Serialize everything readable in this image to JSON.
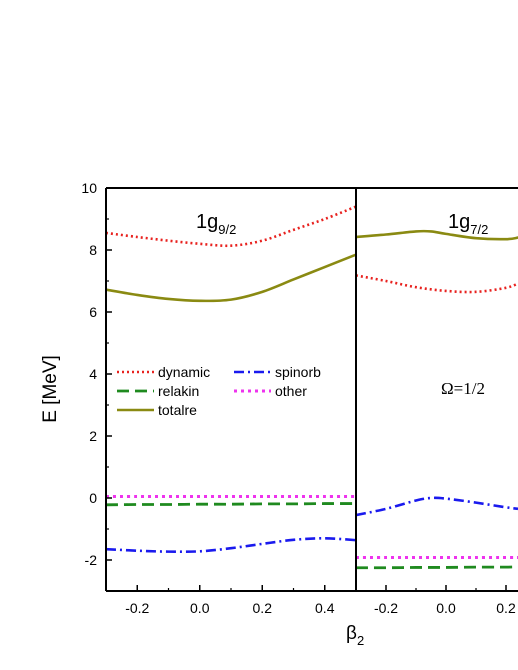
{
  "chart_data": {
    "type": "line",
    "ylabel": "E [MeV]",
    "xlabel_base": "β",
    "xlabel_sub": "2",
    "ylim": [
      -3,
      10
    ],
    "yticks": [
      -2,
      0,
      2,
      4,
      6,
      8,
      10
    ],
    "colors": {
      "dynamic": "#e8221f",
      "relakin": "#1f8a1f",
      "spinorb": "#1a1aee",
      "other": "#ee33ee",
      "totalre": "#8a8a12"
    },
    "legend": {
      "placement": "center-left of first panel",
      "entries": [
        {
          "key": "dynamic",
          "label": "dynamic"
        },
        {
          "key": "spinorb",
          "label": "spinorb"
        },
        {
          "key": "relakin",
          "label": "relakin"
        },
        {
          "key": "other",
          "label": "other"
        },
        {
          "key": "totalre",
          "label": "totalre"
        }
      ]
    },
    "annotation": "Ω=1/2",
    "panels": [
      {
        "title_main": "1g",
        "title_sub": "9/2",
        "xlim": [
          -0.3,
          0.5
        ],
        "xticks": [
          -0.2,
          0.0,
          0.2,
          0.4
        ],
        "xtick_labels": [
          "-0.2",
          "0.0",
          "0.2",
          "0.4"
        ],
        "series": [
          {
            "key": "dynamic",
            "x": [
              -0.3,
              -0.2,
              -0.1,
              0.0,
              0.1,
              0.2,
              0.3,
              0.4,
              0.5
            ],
            "y": [
              8.55,
              8.42,
              8.3,
              8.2,
              8.14,
              8.3,
              8.65,
              9.0,
              9.4
            ]
          },
          {
            "key": "totalre",
            "x": [
              -0.3,
              -0.2,
              -0.1,
              0.0,
              0.1,
              0.2,
              0.3,
              0.4,
              0.5
            ],
            "y": [
              6.72,
              6.55,
              6.42,
              6.36,
              6.4,
              6.65,
              7.05,
              7.45,
              7.85
            ]
          },
          {
            "key": "other",
            "x": [
              -0.3,
              -0.2,
              -0.1,
              0.0,
              0.1,
              0.2,
              0.3,
              0.4,
              0.5
            ],
            "y": [
              0.05,
              0.05,
              0.05,
              0.05,
              0.05,
              0.05,
              0.05,
              0.05,
              0.05
            ]
          },
          {
            "key": "relakin",
            "x": [
              -0.3,
              -0.2,
              -0.1,
              0.0,
              0.1,
              0.2,
              0.3,
              0.4,
              0.5
            ],
            "y": [
              -0.22,
              -0.21,
              -0.21,
              -0.2,
              -0.2,
              -0.19,
              -0.19,
              -0.18,
              -0.18
            ]
          },
          {
            "key": "spinorb",
            "x": [
              -0.3,
              -0.2,
              -0.1,
              0.0,
              0.1,
              0.2,
              0.3,
              0.4,
              0.5
            ],
            "y": [
              -1.65,
              -1.7,
              -1.73,
              -1.72,
              -1.62,
              -1.48,
              -1.35,
              -1.3,
              -1.36
            ]
          }
        ]
      },
      {
        "title_main": "1g",
        "title_sub": "7/2",
        "xlim": [
          -0.3,
          0.24
        ],
        "xticks": [
          -0.2,
          0.0,
          0.2
        ],
        "xtick_labels": [
          "-0.2",
          "0.0",
          "0.2"
        ],
        "series": [
          {
            "key": "totalre",
            "x": [
              -0.3,
              -0.2,
              -0.1,
              -0.05,
              0.0,
              0.1,
              0.2,
              0.24
            ],
            "y": [
              8.42,
              8.5,
              8.6,
              8.6,
              8.52,
              8.38,
              8.35,
              8.4
            ]
          },
          {
            "key": "dynamic",
            "x": [
              -0.3,
              -0.2,
              -0.1,
              0.0,
              0.1,
              0.2,
              0.24
            ],
            "y": [
              7.18,
              7.0,
              6.8,
              6.68,
              6.65,
              6.78,
              6.92
            ]
          },
          {
            "key": "spinorb",
            "x": [
              -0.3,
              -0.2,
              -0.1,
              -0.05,
              0.0,
              0.1,
              0.2,
              0.24
            ],
            "y": [
              -0.55,
              -0.35,
              -0.08,
              0.0,
              -0.02,
              -0.15,
              -0.3,
              -0.35
            ]
          },
          {
            "key": "other",
            "x": [
              -0.3,
              -0.2,
              -0.1,
              0.0,
              0.1,
              0.2,
              0.24
            ],
            "y": [
              -1.92,
              -1.92,
              -1.92,
              -1.92,
              -1.92,
              -1.92,
              -1.92
            ]
          },
          {
            "key": "relakin",
            "x": [
              -0.3,
              -0.2,
              -0.1,
              0.0,
              0.1,
              0.2,
              0.24
            ],
            "y": [
              -2.25,
              -2.25,
              -2.24,
              -2.24,
              -2.23,
              -2.23,
              -2.22
            ]
          }
        ]
      }
    ]
  }
}
